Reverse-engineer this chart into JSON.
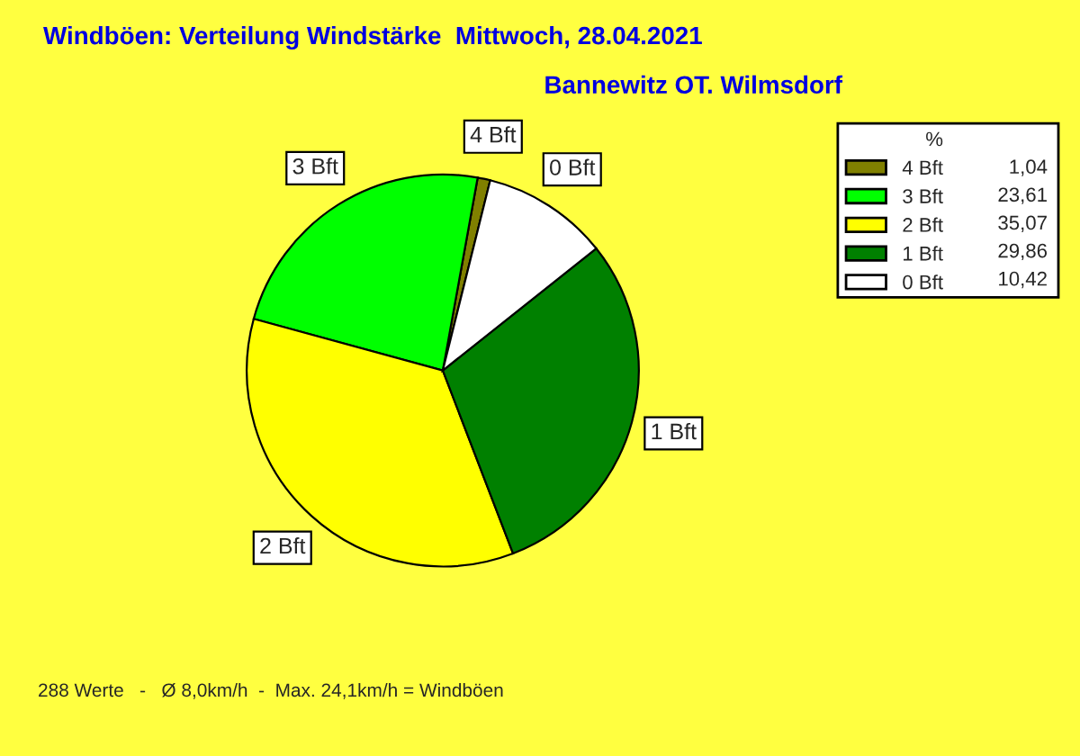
{
  "chart_data": {
    "type": "pie",
    "title": "Windböen: Verteilung Windstärke  Mittwoch, 28.04.2021",
    "subtitle": "Bannewitz OT. Wilmsdorf",
    "categories": [
      "4 Bft",
      "3 Bft",
      "2 Bft",
      "1 Bft",
      "0 Bft"
    ],
    "values": [
      1.04,
      23.61,
      35.07,
      29.86,
      10.42
    ],
    "value_labels": [
      "1,04",
      "23,61",
      "35,07",
      "29,86",
      "10,42"
    ],
    "colors": [
      "#808000",
      "#00ff00",
      "#ffff00",
      "#008000",
      "#ffffff"
    ],
    "legend_title": "%",
    "legend": "top right",
    "annotations": [
      "288 Werte   -   Ø 8,0km/h  -  Max. 24,1km/h = Windböen"
    ]
  }
}
